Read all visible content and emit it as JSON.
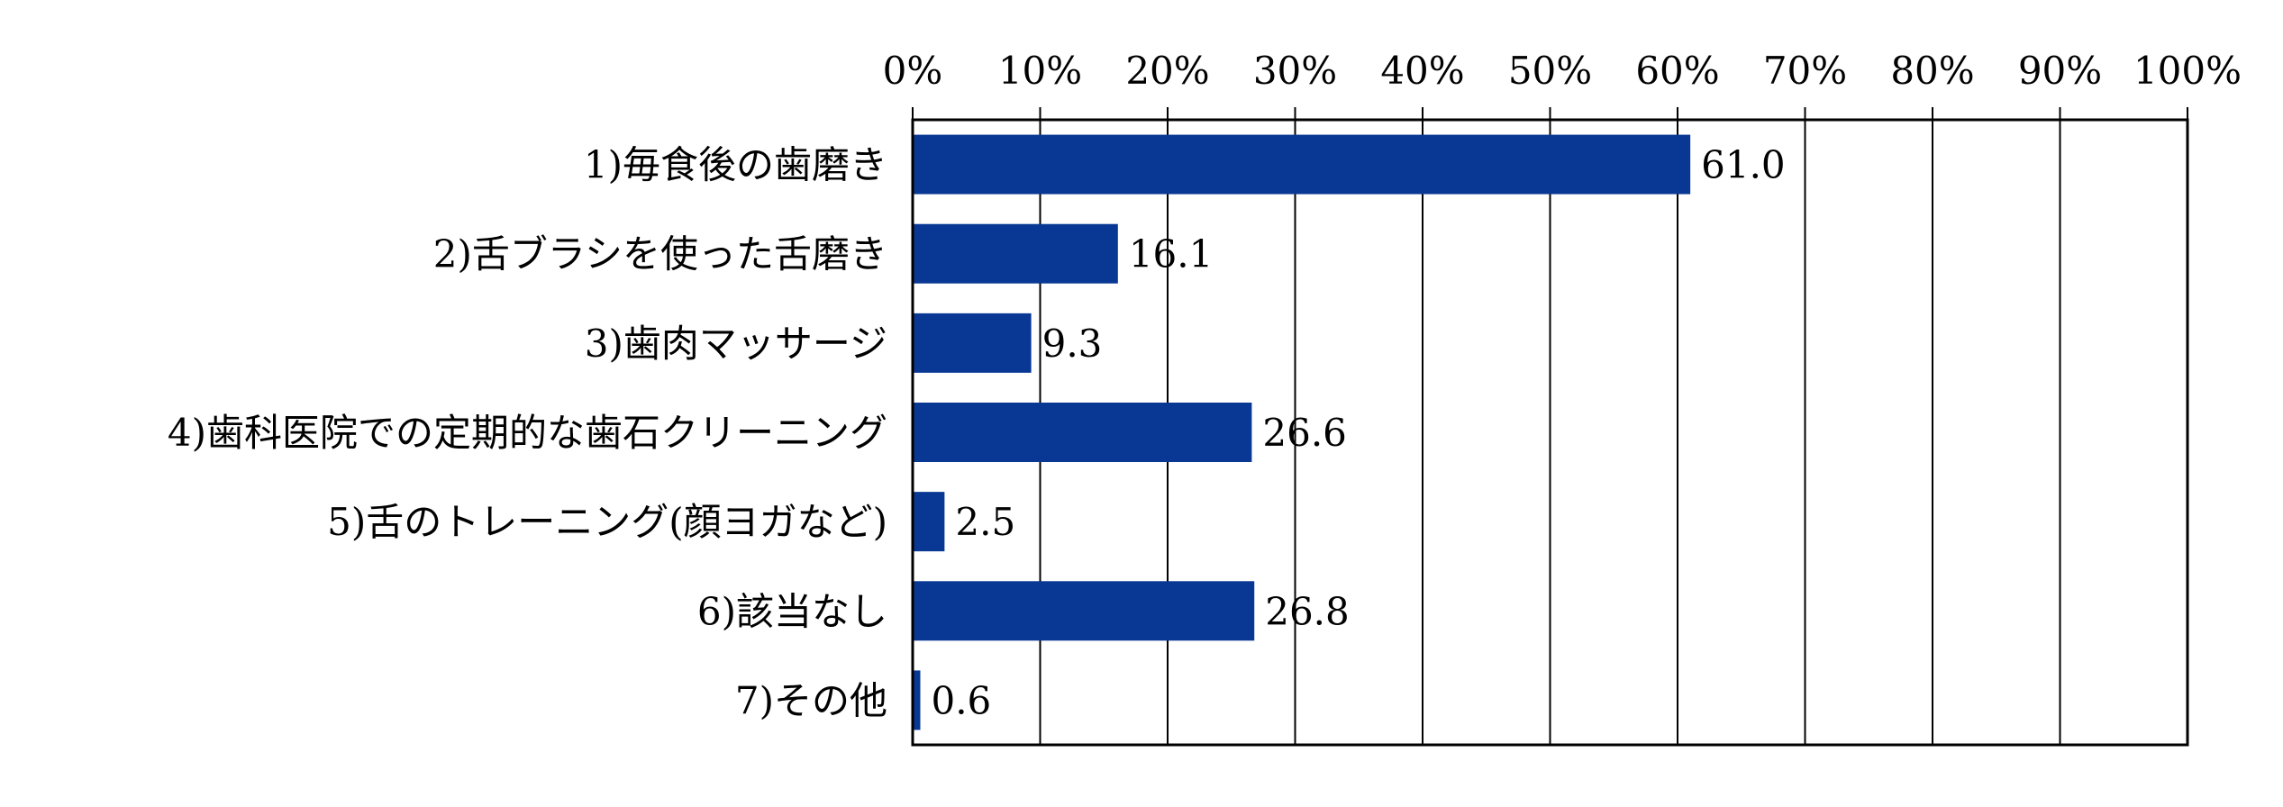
{
  "chart_data": {
    "type": "bar",
    "orientation": "horizontal",
    "categories": [
      "1)毎食後の歯磨き",
      "2)舌ブラシを使った舌磨き",
      "3)歯肉マッサージ",
      "4)歯科医院での定期的な歯石クリーニング",
      "5)舌のトレーニング(顔ヨガなど)",
      "6)該当なし",
      "7)その他"
    ],
    "values": [
      61.0,
      16.1,
      9.3,
      26.6,
      2.5,
      26.8,
      0.6
    ],
    "value_labels": [
      "61.0",
      "16.1",
      "9.3",
      "26.6",
      "2.5",
      "26.8",
      "0.6"
    ],
    "x_ticks": [
      "0%",
      "10%",
      "20%",
      "30%",
      "40%",
      "50%",
      "60%",
      "70%",
      "80%",
      "90%",
      "100%"
    ],
    "xlim": [
      0,
      100
    ],
    "x_axis_position": "top",
    "grid": true,
    "bar_color": "#083894",
    "title": "",
    "xlabel": "",
    "ylabel": ""
  }
}
